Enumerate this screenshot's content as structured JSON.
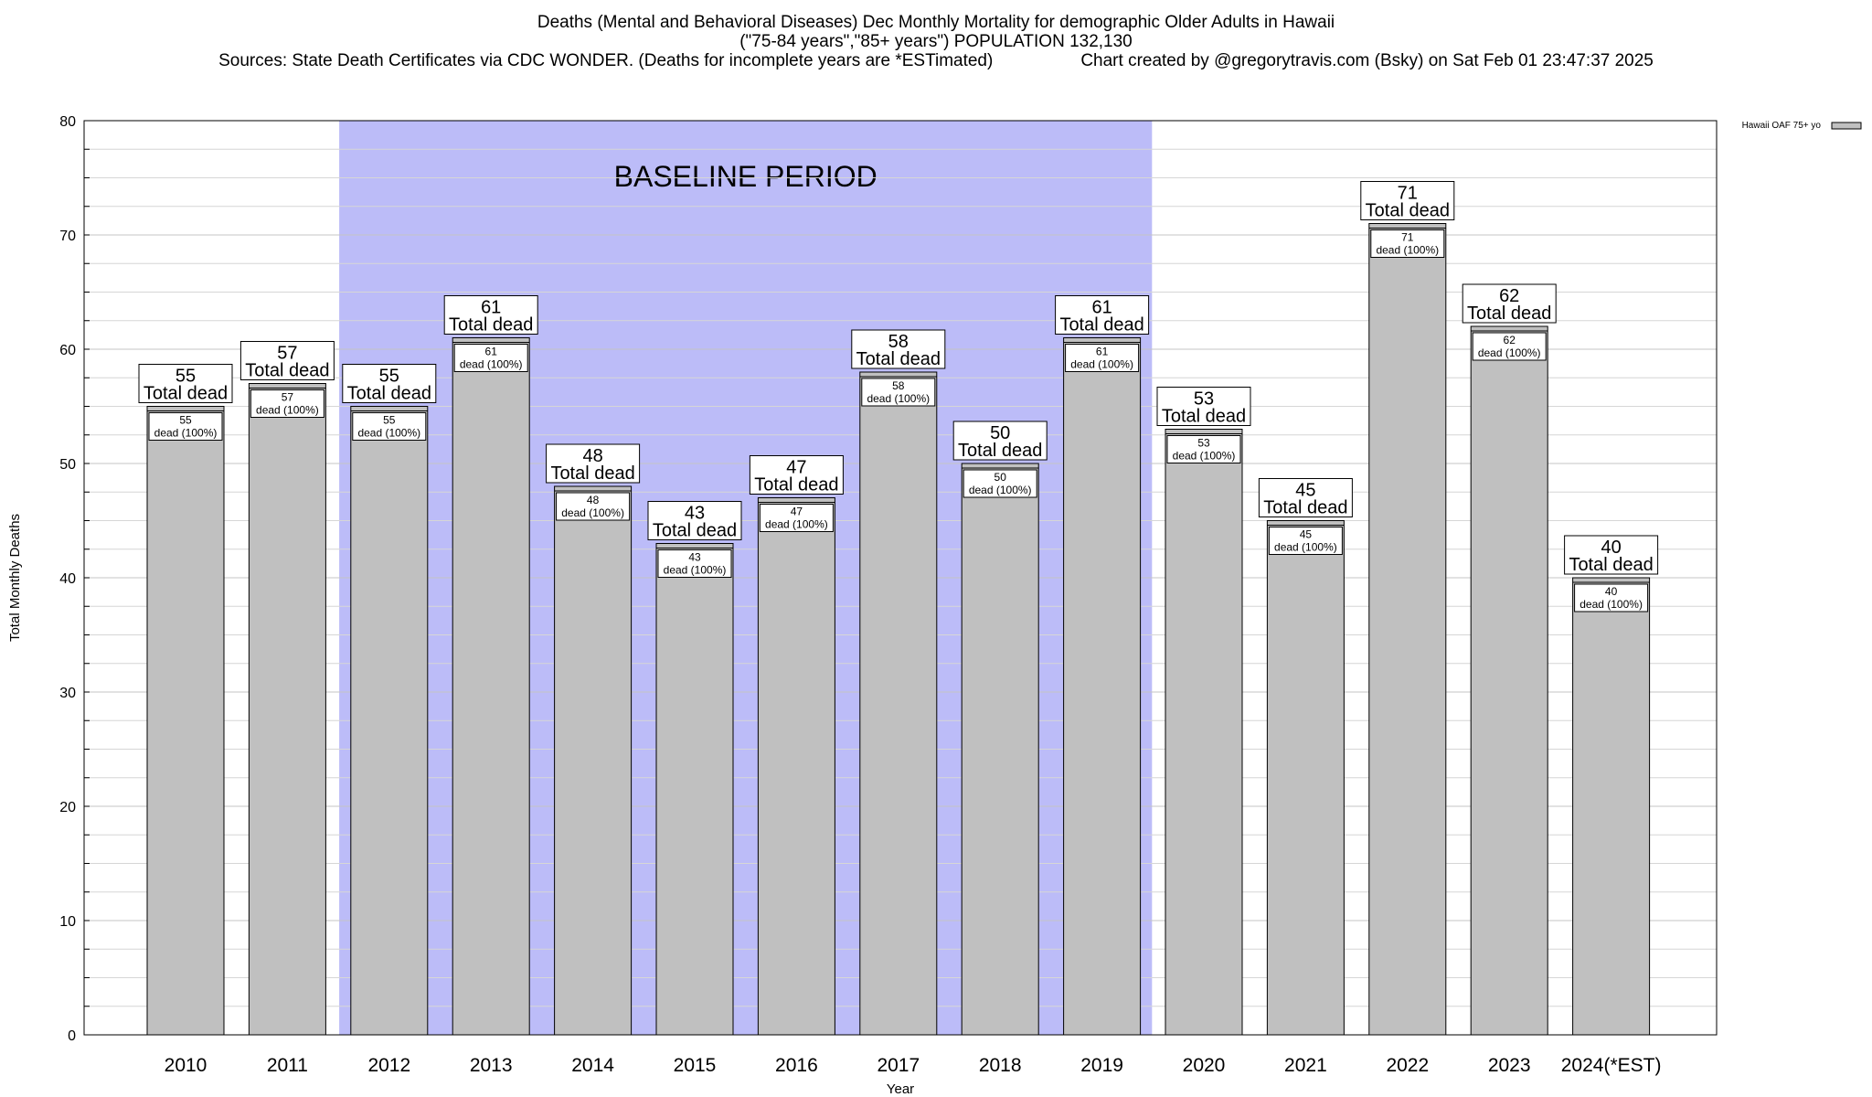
{
  "header": {
    "title": "Deaths (Mental and Behavioral Diseases) Dec Monthly Mortality for demographic Older Adults in Hawaii",
    "subtitle": "(\"75-84 years\",\"85+ years\") POPULATION 132,130",
    "sources": "Sources: State Death Certificates via CDC WONDER. (Deaths for incomplete years are *ESTimated)",
    "credit": "Chart created by @gregorytravis.com (Bsky) on Sat Feb 01 23:47:37 2025"
  },
  "colors": {
    "bar_fill": "#c0c0c0",
    "baseline_band": "#bcbcf8",
    "grid": "#d6d6d6",
    "axis": "#000000"
  },
  "chart_data": {
    "type": "bar",
    "title": "Deaths (Mental and Behavioral Diseases) Dec Monthly Mortality for demographic Older Adults in Hawaii",
    "xlabel": "Year",
    "ylabel": "Total Monthly Deaths",
    "ylim": [
      0,
      80
    ],
    "yticks": [
      0,
      10,
      20,
      30,
      40,
      50,
      60,
      70,
      80
    ],
    "grid": true,
    "legend_position": "top-right",
    "categories": [
      "2010",
      "2011",
      "2012",
      "2013",
      "2014",
      "2015",
      "2016",
      "2017",
      "2018",
      "2019",
      "2020",
      "2021",
      "2022",
      "2023",
      "2024(*EST)"
    ],
    "series": [
      {
        "name": "Hawaii OAF 75+ yo",
        "values": [
          55,
          57,
          55,
          61,
          48,
          43,
          47,
          58,
          50,
          61,
          53,
          45,
          71,
          62,
          40
        ]
      }
    ],
    "total_label": "Total dead",
    "inner_label": "dead (100%)",
    "annotation": {
      "text": "BASELINE PERIOD",
      "from": "2012",
      "to": "2019"
    }
  }
}
